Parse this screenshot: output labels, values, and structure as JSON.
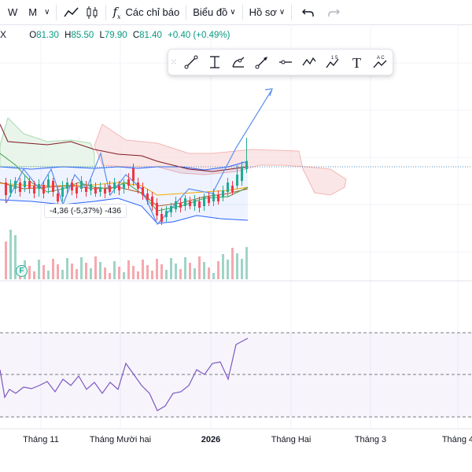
{
  "toolbar": {
    "interval_w": "W",
    "interval_m": "M",
    "indicators_label": "Các chỉ báo",
    "chart_type_label": "Biểu đồ",
    "profile_label": "Hồ sơ"
  },
  "legend": {
    "symbol": "X",
    "open_label": "O",
    "open_value": "81.30",
    "high_label": "H",
    "high_value": "85.50",
    "low_label": "L",
    "low_value": "79.90",
    "close_label": "C",
    "close_value": "81.40",
    "change": "+0.40 (+0.49%)"
  },
  "drawing_tools": [
    "line-tool-icon",
    "info-line-icon",
    "fib-icon",
    "arrow-tool-icon",
    "horizontal-line-icon",
    "pattern-icon",
    "elliott-icon",
    "text-tool-icon",
    "abc-pattern-icon"
  ],
  "drawing_tool_labels": {
    "elliott_top": "1  5",
    "abc_top": "A  C",
    "text_glyph": "T"
  },
  "measure_tooltip": "-4,36 (-5,37%) -436",
  "earnings_badge": "F",
  "time_axis": [
    {
      "label": "Tháng 11",
      "x": 52
    },
    {
      "label": "Tháng Mười hai",
      "x": 153
    },
    {
      "label": "2026",
      "x": 268,
      "bold": true
    },
    {
      "label": "Tháng Hai",
      "x": 370
    },
    {
      "label": "Tháng 3",
      "x": 471
    },
    {
      "label": "Tháng 4",
      "x": 582
    }
  ],
  "colors": {
    "up": "#22ab94",
    "down": "#f23645",
    "bollinger": "#2962ff",
    "rsi": "#7e57c2",
    "cloud": "#f7d5d5"
  }
}
